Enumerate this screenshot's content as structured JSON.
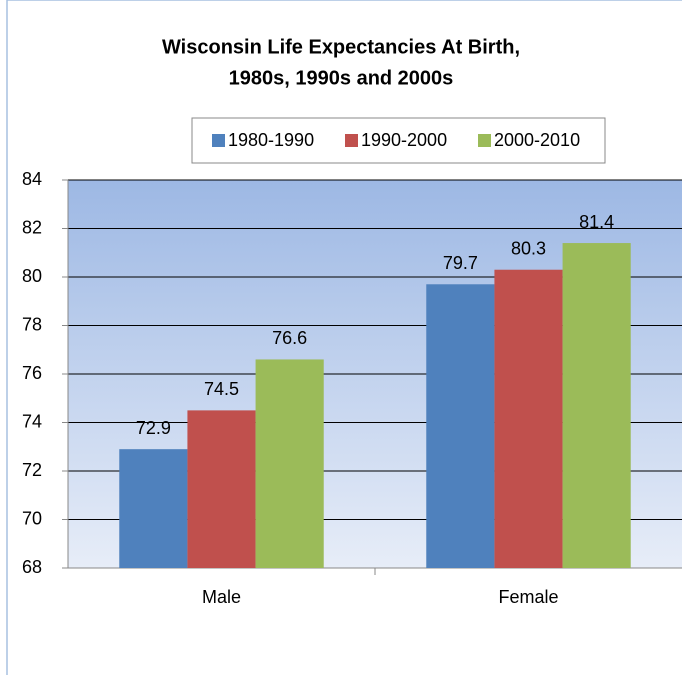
{
  "chart_data": {
    "type": "bar",
    "title": [
      "Wisconsin Life Expectancies At Birth,",
      "1980s, 1990s and 2000s"
    ],
    "categories": [
      "Male",
      "Female"
    ],
    "series": [
      {
        "name": "1980-1990",
        "color": "#4f81bd",
        "values": [
          72.9,
          79.7
        ]
      },
      {
        "name": "1990-2000",
        "color": "#c0504d",
        "values": [
          74.5,
          80.3
        ]
      },
      {
        "name": "2000-2010",
        "color": "#9bbb59",
        "values": [
          76.6,
          81.4
        ]
      }
    ],
    "ylim": [
      68,
      84
    ],
    "yticks": [
      68,
      70,
      72,
      74,
      76,
      78,
      80,
      82,
      84
    ],
    "grid": true,
    "legend": "top"
  }
}
